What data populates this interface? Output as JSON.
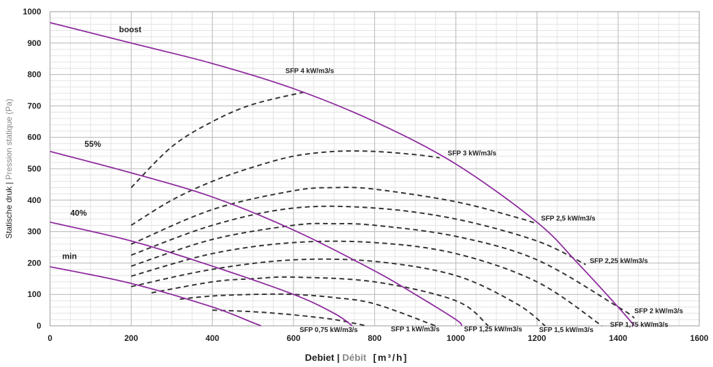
{
  "chart_data": {
    "type": "line",
    "xlabel": {
      "part1": "Debiet",
      "sep": " | ",
      "part2": "Débit",
      "unit": "[m³/h]"
    },
    "ylabel": {
      "part1": "Statische druk",
      "sep": " | ",
      "part2": "Pression statique (Pa)"
    },
    "xlim": [
      0,
      1600
    ],
    "ylim": [
      0,
      1000
    ],
    "xticks": [
      0,
      200,
      400,
      600,
      800,
      1000,
      1200,
      1400,
      1600
    ],
    "yticks": [
      0,
      100,
      200,
      300,
      400,
      500,
      600,
      700,
      800,
      900,
      1000
    ],
    "grid": true,
    "colors": {
      "fan_curve": "#8e2a9e",
      "sfp_curve": "#333333",
      "grid_major": "#b9b9b9",
      "grid_minor": "#e3e3e3"
    },
    "series": [
      {
        "name": "boost",
        "style": "solid",
        "x": [
          0,
          200,
          400,
          600,
          800,
          1000,
          1200,
          1300,
          1400,
          1440
        ],
        "y": [
          965,
          900,
          835,
          755,
          650,
          515,
          330,
          200,
          60,
          0
        ]
      },
      {
        "name": "55%",
        "style": "solid",
        "x": [
          0,
          200,
          400,
          600,
          800,
          900,
          1000,
          1015
        ],
        "y": [
          555,
          487,
          410,
          305,
          175,
          100,
          20,
          0
        ]
      },
      {
        "name": "40%",
        "style": "solid",
        "x": [
          0,
          200,
          400,
          600,
          700,
          745
        ],
        "y": [
          330,
          270,
          190,
          100,
          40,
          0
        ]
      },
      {
        "name": "min",
        "style": "solid",
        "x": [
          0,
          200,
          400,
          500,
          520
        ],
        "y": [
          188,
          135,
          60,
          10,
          0
        ]
      }
    ],
    "sfp_curves": [
      {
        "name": "SFP 4 kW/m3/s",
        "x": [
          200,
          300,
          400,
          500,
          630
        ],
        "y": [
          440,
          570,
          650,
          705,
          745
        ]
      },
      {
        "name": "SFP 3 kW/m3/s",
        "x": [
          200,
          300,
          400,
          500,
          600,
          700,
          800,
          900,
          960
        ],
        "y": [
          320,
          400,
          460,
          505,
          540,
          555,
          555,
          545,
          535
        ]
      },
      {
        "name": "SFP 2,5 kW/m3/s",
        "x": [
          200,
          400,
          600,
          700,
          800,
          1000,
          1150,
          1200
        ],
        "y": [
          260,
          370,
          430,
          440,
          435,
          395,
          345,
          325
        ]
      },
      {
        "name": "SFP 2,25 kW/m3/s",
        "x": [
          200,
          400,
          600,
          800,
          1000,
          1200,
          1320
        ],
        "y": [
          225,
          320,
          375,
          375,
          340,
          270,
          195
        ]
      },
      {
        "name": "SFP 2 kW/m3/s",
        "x": [
          200,
          400,
          600,
          700,
          800,
          1000,
          1200,
          1400,
          1440
        ],
        "y": [
          190,
          275,
          320,
          325,
          320,
          285,
          210,
          60,
          25
        ]
      },
      {
        "name": "SFP 1,75 kW/m3/s",
        "x": [
          200,
          400,
          600,
          800,
          1000,
          1200,
          1360
        ],
        "y": [
          158,
          230,
          265,
          265,
          230,
          140,
          0
        ]
      },
      {
        "name": "SFP 1,5 kW/m3/s",
        "x": [
          200,
          400,
          600,
          800,
          1000,
          1150,
          1220
        ],
        "y": [
          125,
          180,
          210,
          205,
          160,
          70,
          0
        ]
      },
      {
        "name": "SFP 1,25 kW/m3/s",
        "x": [
          250,
          400,
          500,
          600,
          800,
          1000,
          1080
        ],
        "y": [
          105,
          140,
          150,
          155,
          140,
          80,
          0
        ]
      },
      {
        "name": "SFP 1 kW/m3/s",
        "x": [
          320,
          400,
          500,
          600,
          700,
          800,
          950
        ],
        "y": [
          85,
          95,
          100,
          100,
          90,
          70,
          0
        ]
      },
      {
        "name": "SFP 0,75 kW/m3/s",
        "x": [
          400,
          500,
          600,
          700,
          780
        ],
        "y": [
          50,
          45,
          35,
          20,
          0
        ]
      }
    ],
    "curve_labels": [
      {
        "text": "boost",
        "x": 170,
        "y": 935
      },
      {
        "text": "55%",
        "x": 85,
        "y": 570
      },
      {
        "text": "40%",
        "x": 50,
        "y": 350
      },
      {
        "text": "min",
        "x": 30,
        "y": 213
      }
    ],
    "sfp_labels": [
      {
        "text": "SFP 4 kW/m3/s",
        "x": 580,
        "y": 805
      },
      {
        "text": "SFP 3 kW/m3/s",
        "x": 980,
        "y": 543
      },
      {
        "text": "SFP 2,5 kW/m3/s",
        "x": 1210,
        "y": 335
      },
      {
        "text": "SFP 2,25 kW/m3/s",
        "x": 1330,
        "y": 200
      },
      {
        "text": "SFP 2 kW/m3/s",
        "x": 1440,
        "y": 40
      },
      {
        "text": "SFP 1,75 kW/m3/s",
        "x": 1380,
        "y": -3
      },
      {
        "text": "SFP 1,5 kW/m3/s",
        "x": 1205,
        "y": -20
      },
      {
        "text": "SFP 1,25 kW/m3/s",
        "x": 1020,
        "y": -17
      },
      {
        "text": "SFP 1 kW/m3/s",
        "x": 840,
        "y": -17
      },
      {
        "text": "SFP 0,75 kW/m3/s",
        "x": 615,
        "y": -20
      }
    ]
  }
}
